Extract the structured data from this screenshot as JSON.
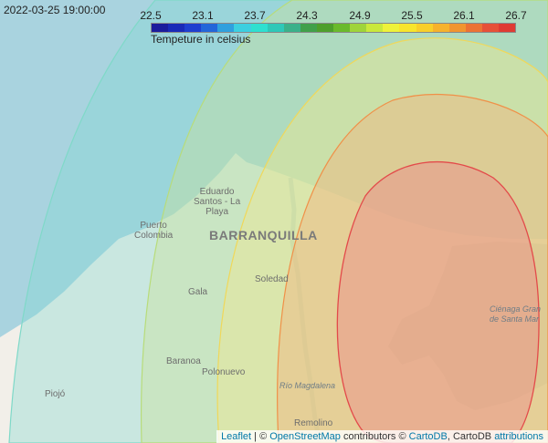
{
  "timestamp": "2022-03-25 19:00:00",
  "legend": {
    "ticks": [
      "22.5",
      "23.1",
      "23.7",
      "24.3",
      "24.9",
      "25.5",
      "26.1",
      "26.7"
    ],
    "caption": "Tempeture in celsius",
    "colors": [
      "#1b1c9c",
      "#1a2ab8",
      "#1f3fcf",
      "#2366d9",
      "#2fa0de",
      "#3ccfe0",
      "#2ee0d0",
      "#2fc8b8",
      "#3bb18a",
      "#41a04a",
      "#4e9f2c",
      "#6aba2c",
      "#9fd43a",
      "#c9e83c",
      "#eef23a",
      "#f7e52c",
      "#f8cf2a",
      "#f6b22c",
      "#f19530",
      "#ec7234",
      "#e65038",
      "#df3b33"
    ]
  },
  "places": {
    "eduardo_santos": "Eduardo\nSantos - La\nPlaya",
    "puerto_colombia": "Puerto\nColombia",
    "barranquilla": "BARRANQUILLA",
    "soledad": "Soledad",
    "galapa": "Gala",
    "baranoa": "Baranoa",
    "polonuevo": "Polonuevo",
    "piojo": "Piojó",
    "rio_magdalena": "Río Magdalena",
    "remolino": "Remolino",
    "cienaga": "Ciénaga Gran\nde Santa Mar"
  },
  "attribution": {
    "leaflet": "Leaflet",
    "sep1": " | © ",
    "osm": "OpenStreetMap",
    "contrib": " contributors © ",
    "cartodb": "CartoDB",
    "sep2": ", CartoDB ",
    "attributions": "attributions"
  }
}
